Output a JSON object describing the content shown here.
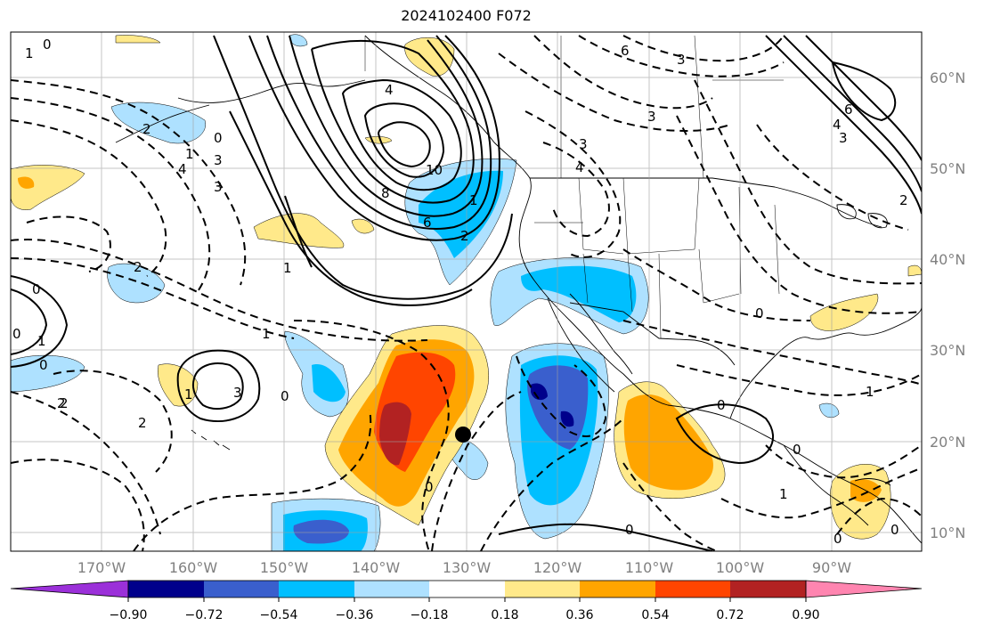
{
  "title": "2024102400 F072",
  "lon_labels": [
    "170°W",
    "160°W",
    "150°W",
    "140°W",
    "130°W",
    "120°W",
    "110°W",
    "100°W",
    "90°W"
  ],
  "lat_labels": [
    "60°N",
    "50°N",
    "40°N",
    "30°N",
    "20°N",
    "10°N"
  ],
  "colorbar": {
    "ticks": [
      "−0.90",
      "−0.72",
      "−0.54",
      "−0.36",
      "−0.18",
      "0.18",
      "0.36",
      "0.54",
      "0.72",
      "0.90"
    ],
    "colors": [
      "#9b30d9",
      "#00008b",
      "#3a5fcd",
      "#00bfff",
      "#aee1ff",
      "#ffffff",
      "#ffe98a",
      "#ffa500",
      "#ff4500",
      "#b22222",
      "#ff85b0"
    ]
  },
  "contour_labels": [
    "0",
    "1",
    "2",
    "3",
    "4",
    "6",
    "8",
    "10",
    "6",
    "3",
    "4",
    "2",
    "1",
    "0",
    "0",
    "1",
    "2",
    "3",
    "0",
    "1",
    "2",
    "0",
    "1",
    "0",
    "0",
    "1",
    "2",
    "3",
    "4",
    "3",
    "6",
    "4",
    "3",
    "2",
    "1",
    "0",
    "0",
    "1",
    "0",
    "0",
    "0",
    "0",
    "1",
    "2",
    "3"
  ],
  "marker": {
    "label": "",
    "lon": -130,
    "lat": 21
  }
}
